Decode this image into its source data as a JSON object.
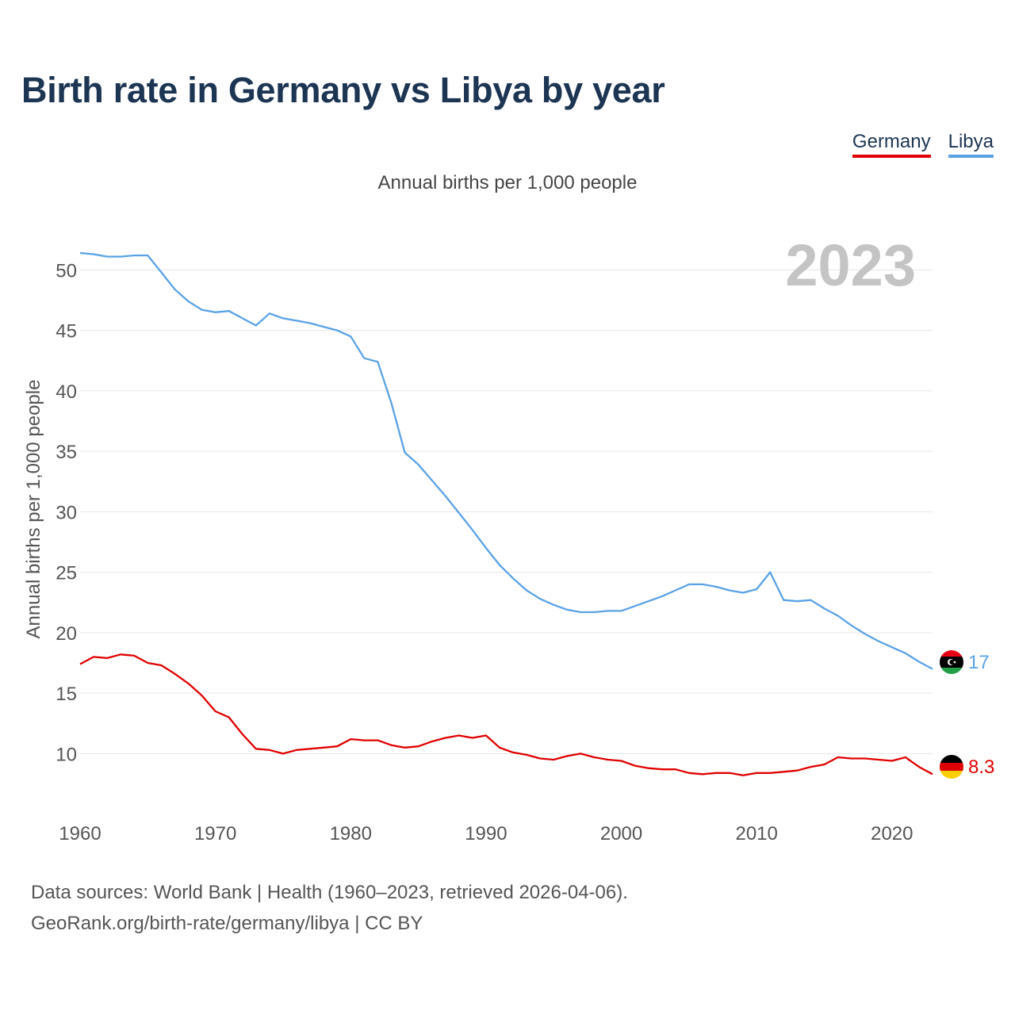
{
  "header": {
    "title": "Birth rate in Germany vs Libya by year",
    "subtitle": "Annual births per 1,000 people"
  },
  "legend": [
    {
      "label": "Germany",
      "color": "#e00000"
    },
    {
      "label": "Libya",
      "color": "#5aa2e6"
    }
  ],
  "footer": {
    "line1": "Data sources: World Bank | Health (1960–2023, retrieved 2026-04-06).",
    "line2": "GeoRank.org/birth-rate/germany/libya | CC BY"
  },
  "chart_data": {
    "type": "line",
    "title": "Birth rate in Germany vs Libya by year",
    "ylabel": "Annual births per 1,000 people",
    "xlabel": "",
    "year_label": "2023",
    "xlim": [
      1960,
      2023
    ],
    "ylim": [
      5.5,
      53.5
    ],
    "x_ticks": [
      1960,
      1970,
      1980,
      1990,
      2000,
      2010,
      2020
    ],
    "y_ticks": [
      10,
      15,
      20,
      25,
      30,
      35,
      40,
      45,
      50
    ],
    "grid": true,
    "x": [
      1960,
      1961,
      1962,
      1963,
      1964,
      1965,
      1966,
      1967,
      1968,
      1969,
      1970,
      1971,
      1972,
      1973,
      1974,
      1975,
      1976,
      1977,
      1978,
      1979,
      1980,
      1981,
      1982,
      1983,
      1984,
      1985,
      1986,
      1987,
      1988,
      1989,
      1990,
      1991,
      1992,
      1993,
      1994,
      1995,
      1996,
      1997,
      1998,
      1999,
      2000,
      2001,
      2002,
      2003,
      2004,
      2005,
      2006,
      2007,
      2008,
      2009,
      2010,
      2011,
      2012,
      2013,
      2014,
      2015,
      2016,
      2017,
      2018,
      2019,
      2020,
      2021,
      2022,
      2023
    ],
    "series": [
      {
        "name": "Libya",
        "color": "#5aa2e6",
        "end_label": "17",
        "values": [
          51.4,
          51.3,
          51.1,
          51.1,
          51.2,
          51.2,
          49.8,
          48.4,
          47.4,
          46.7,
          46.5,
          46.6,
          46.0,
          45.4,
          46.4,
          46.0,
          45.8,
          45.6,
          45.3,
          45.0,
          44.5,
          42.7,
          42.4,
          39.0,
          34.9,
          33.9,
          32.6,
          31.3,
          29.9,
          28.5,
          27.0,
          25.6,
          24.5,
          23.5,
          22.8,
          22.3,
          21.9,
          21.7,
          21.7,
          21.8,
          21.8,
          22.2,
          22.6,
          23.0,
          23.5,
          24.0,
          24.0,
          23.8,
          23.5,
          23.3,
          23.6,
          25.0,
          22.7,
          22.6,
          22.7,
          22.0,
          21.4,
          20.6,
          19.9,
          19.3,
          18.8,
          18.3,
          17.6,
          17.0
        ]
      },
      {
        "name": "Germany",
        "color": "#e00000",
        "end_label": "8.3",
        "values": [
          17.4,
          18.0,
          17.9,
          18.2,
          18.1,
          17.5,
          17.3,
          16.6,
          15.8,
          14.8,
          13.5,
          13.0,
          11.6,
          10.4,
          10.3,
          10.0,
          10.3,
          10.4,
          10.5,
          10.6,
          11.2,
          11.1,
          11.1,
          10.7,
          10.5,
          10.6,
          11.0,
          11.3,
          11.5,
          11.3,
          11.5,
          10.5,
          10.1,
          9.9,
          9.6,
          9.5,
          9.8,
          10.0,
          9.7,
          9.5,
          9.4,
          9.0,
          8.8,
          8.7,
          8.7,
          8.4,
          8.3,
          8.4,
          8.4,
          8.2,
          8.4,
          8.4,
          8.5,
          8.6,
          8.9,
          9.1,
          9.7,
          9.6,
          9.6,
          9.5,
          9.4,
          9.7,
          8.9,
          8.3
        ]
      }
    ]
  }
}
